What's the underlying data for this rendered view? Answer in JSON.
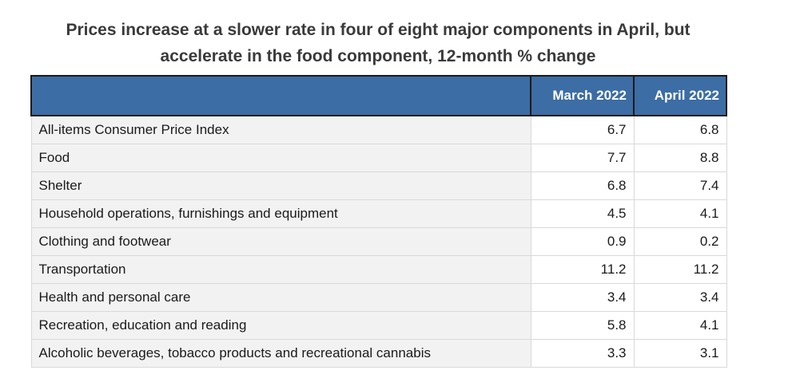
{
  "page": {
    "title": "Prices increase at a slower rate in four of eight major components in April, but accelerate in the food component, 12-month % change",
    "title_lines": [
      "Prices increase at a slower rate in four of eight major components in April, but",
      "accelerate in the food component, 12-month % change"
    ]
  },
  "colors": {
    "header_bg": "#3c6da4",
    "header_text": "#ffffff",
    "header_border": "#1a1a1a",
    "label_cell_bg": "#f2f2f2",
    "value_cell_bg": "#ffffff",
    "grid_line": "#d9d9d9",
    "body_text": "#1a1a1a",
    "title_text": "#3a3a3a"
  },
  "table": {
    "columns": [
      "",
      "March 2022",
      "April 2022"
    ],
    "rows": [
      {
        "label": "All-items Consumer Price Index",
        "march": "6.7",
        "april": "6.8"
      },
      {
        "label": "Food",
        "march": "7.7",
        "april": "8.8"
      },
      {
        "label": "Shelter",
        "march": "6.8",
        "april": "7.4"
      },
      {
        "label": "Household operations, furnishings and equipment",
        "march": "4.5",
        "april": "4.1"
      },
      {
        "label": "Clothing and footwear",
        "march": "0.9",
        "april": "0.2"
      },
      {
        "label": "Transportation",
        "march": "11.2",
        "april": "11.2"
      },
      {
        "label": "Health and personal care",
        "march": "3.4",
        "april": "3.4"
      },
      {
        "label": "Recreation, education and reading",
        "march": "5.8",
        "april": "4.1"
      },
      {
        "label": "Alcoholic beverages, tobacco products and recreational cannabis",
        "march": "3.3",
        "april": "3.1"
      }
    ]
  },
  "chart_data": {
    "type": "table",
    "title": "Prices increase at a slower rate in four of eight major components in April, but accelerate in the food component, 12-month % change",
    "unit": "12-month % change",
    "columns": [
      "March 2022",
      "April 2022"
    ],
    "categories": [
      "All-items Consumer Price Index",
      "Food",
      "Shelter",
      "Household operations, furnishings and equipment",
      "Clothing and footwear",
      "Transportation",
      "Health and personal care",
      "Recreation, education and reading",
      "Alcoholic beverages, tobacco products and recreational cannabis"
    ],
    "series": [
      {
        "name": "March 2022",
        "values": [
          6.7,
          7.7,
          6.8,
          4.5,
          0.9,
          11.2,
          3.4,
          5.8,
          3.3
        ]
      },
      {
        "name": "April 2022",
        "values": [
          6.8,
          8.8,
          7.4,
          4.1,
          0.2,
          11.2,
          3.4,
          4.1,
          3.1
        ]
      }
    ]
  }
}
